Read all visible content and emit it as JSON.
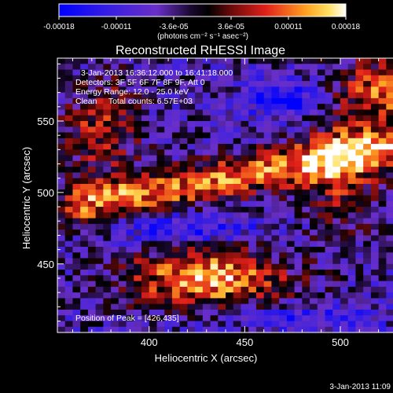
{
  "chart_data": {
    "type": "heatmap",
    "title": "Reconstructed RHESSI Image",
    "xlabel": "Heliocentric X (arcsec)",
    "ylabel": "Heliocentric Y (arcsec)",
    "xlim": [
      352,
      544
    ],
    "ylim": [
      402,
      594
    ],
    "xticks": [
      400,
      450,
      500
    ],
    "yticks": [
      450,
      500,
      550
    ],
    "grid": false,
    "colorbar": {
      "position": "top",
      "vmin": -0.00018,
      "vmax": 0.00018,
      "tick_labels": [
        "-0.00018",
        "-0.00011",
        "-3.6e-05",
        "3.6e-05",
        "0.00011",
        "0.00018"
      ],
      "unit_label": "(photons cm⁻² s⁻¹ asec⁻²)",
      "colormap": "RHESSI blue-purple-black-red-orange-yellow-white"
    },
    "annotations": [
      "3-Jan-2013 16:36:12.000 to 16:41:18.000",
      "Detectors: 3F 5F 6F 7F 8F 9F, Att 0",
      "Energy Range: 12.0 - 25.0 keV",
      "Clean     Total counts: 6.57E+03",
      "Position of Peak = [426,435]"
    ],
    "peak": [
      426,
      435
    ],
    "grid_size": 48,
    "seed": 20130103
  },
  "footer": {
    "date": "3-Jan-2013 11:09"
  },
  "colors": {
    "background": "#000000",
    "axes": "#ffffff",
    "low": "#0000ff",
    "mid_low": "#6a2fc8",
    "zero": "#000000",
    "mid_high": "#e0201a",
    "high": "#ffa020",
    "max": "#ffffff"
  }
}
